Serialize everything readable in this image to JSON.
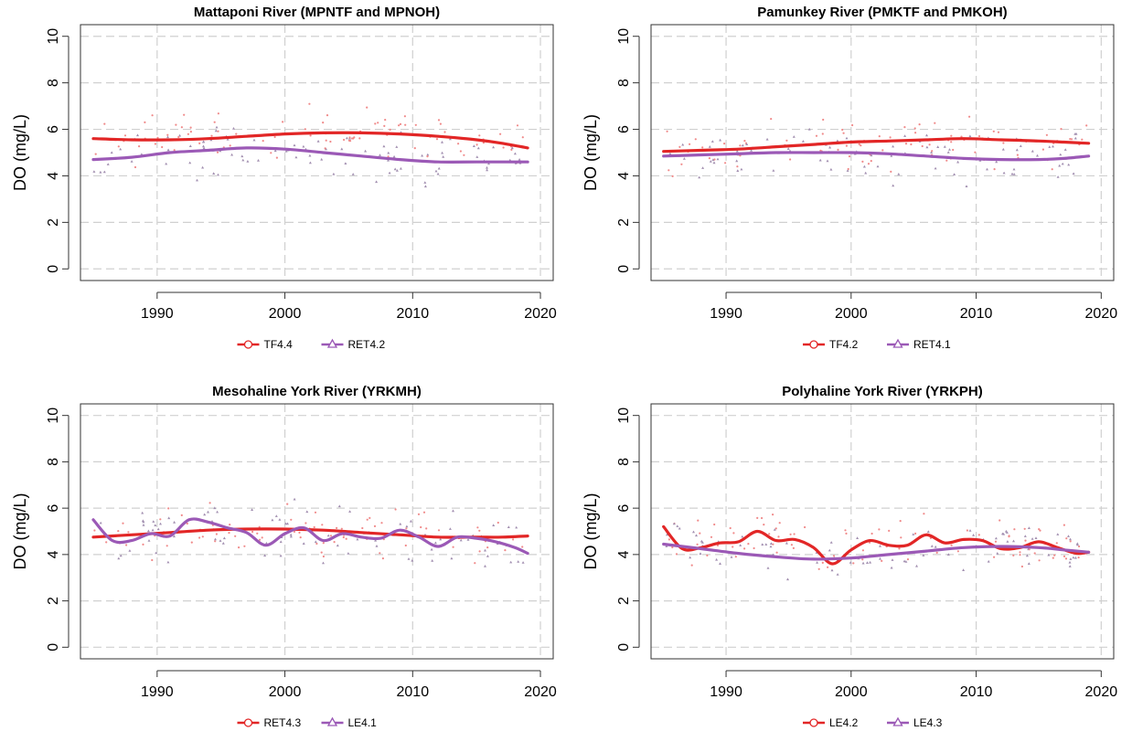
{
  "chart_data": [
    {
      "type": "line",
      "title": "Mattaponi River (MPNTF and MPNOH)",
      "xlabel": "",
      "ylabel": "DO (mg/L)",
      "xlim": [
        1984,
        2021
      ],
      "ylim": [
        -0.5,
        10.5
      ],
      "xticks": [
        1990,
        2000,
        2010,
        2020
      ],
      "yticks": [
        0,
        2,
        4,
        6,
        8,
        10
      ],
      "grid": true,
      "legend_position": "bottom",
      "series": [
        {
          "name": "TF4.4",
          "color": "#e22626",
          "marker": "circle",
          "x": [
            1985,
            1988,
            1991,
            1994,
            1997,
            2000,
            2003,
            2006,
            2009,
            2012,
            2015,
            2017,
            2019
          ],
          "y": [
            5.6,
            5.55,
            5.55,
            5.6,
            5.7,
            5.8,
            5.85,
            5.85,
            5.8,
            5.7,
            5.55,
            5.4,
            5.2
          ]
        },
        {
          "name": "RET4.2",
          "color": "#9b59b6",
          "marker": "triangle",
          "x": [
            1985,
            1988,
            1991,
            1994,
            1997,
            2000,
            2003,
            2006,
            2009,
            2012,
            2015,
            2017,
            2019
          ],
          "y": [
            4.7,
            4.8,
            5.0,
            5.1,
            5.2,
            5.15,
            5.0,
            4.85,
            4.7,
            4.6,
            4.6,
            4.6,
            4.6
          ]
        }
      ]
    },
    {
      "type": "line",
      "title": "Pamunkey River (PMKTF and PMKOH)",
      "xlabel": "",
      "ylabel": "DO (mg/L)",
      "xlim": [
        1984,
        2021
      ],
      "ylim": [
        -0.5,
        10.5
      ],
      "xticks": [
        1990,
        2000,
        2010,
        2020
      ],
      "yticks": [
        0,
        2,
        4,
        6,
        8,
        10
      ],
      "grid": true,
      "legend_position": "bottom",
      "series": [
        {
          "name": "TF4.2",
          "color": "#e22626",
          "marker": "circle",
          "x": [
            1985,
            1988,
            1991,
            1994,
            1997,
            2000,
            2003,
            2006,
            2009,
            2012,
            2015,
            2017,
            2019
          ],
          "y": [
            5.05,
            5.1,
            5.15,
            5.25,
            5.35,
            5.45,
            5.5,
            5.55,
            5.6,
            5.55,
            5.5,
            5.45,
            5.4
          ]
        },
        {
          "name": "RET4.1",
          "color": "#9b59b6",
          "marker": "triangle",
          "x": [
            1985,
            1988,
            1991,
            1994,
            1997,
            2000,
            2003,
            2006,
            2009,
            2012,
            2015,
            2017,
            2019
          ],
          "y": [
            4.85,
            4.9,
            4.95,
            5.0,
            5.0,
            5.0,
            4.95,
            4.85,
            4.75,
            4.7,
            4.7,
            4.75,
            4.85
          ]
        }
      ]
    },
    {
      "type": "line",
      "title": "Mesohaline York River (YRKMH)",
      "xlabel": "",
      "ylabel": "DO (mg/L)",
      "xlim": [
        1984,
        2021
      ],
      "ylim": [
        -0.5,
        10.5
      ],
      "xticks": [
        1990,
        2000,
        2010,
        2020
      ],
      "yticks": [
        0,
        2,
        4,
        6,
        8,
        10
      ],
      "grid": true,
      "legend_position": "bottom",
      "series": [
        {
          "name": "RET4.3",
          "color": "#e22626",
          "marker": "circle",
          "x": [
            1985,
            1988,
            1991,
            1994,
            1997,
            2000,
            2003,
            2006,
            2009,
            2012,
            2015,
            2017,
            2019
          ],
          "y": [
            4.75,
            4.85,
            4.95,
            5.05,
            5.1,
            5.1,
            5.05,
            4.95,
            4.85,
            4.75,
            4.75,
            4.75,
            4.8
          ]
        },
        {
          "name": "LE4.1",
          "color": "#9b59b6",
          "marker": "triangle",
          "x": [
            1985,
            1986.5,
            1988,
            1989.5,
            1991,
            1992.5,
            1994,
            1995.5,
            1997,
            1998.5,
            2000,
            2001.5,
            2003,
            2004.5,
            2006,
            2007.5,
            2009,
            2010.5,
            2012,
            2013.5,
            2015,
            2016.5,
            2018,
            2019
          ],
          "y": [
            5.5,
            4.6,
            4.6,
            4.9,
            4.8,
            5.5,
            5.4,
            5.15,
            4.95,
            4.4,
            4.9,
            5.15,
            4.6,
            4.9,
            4.75,
            4.7,
            5.05,
            4.75,
            4.35,
            4.75,
            4.7,
            4.55,
            4.3,
            4.05
          ]
        }
      ]
    },
    {
      "type": "line",
      "title": "Polyhaline York River (YRKPH)",
      "xlabel": "",
      "ylabel": "DO (mg/L)",
      "xlim": [
        1984,
        2021
      ],
      "ylim": [
        -0.5,
        10.5
      ],
      "xticks": [
        1990,
        2000,
        2010,
        2020
      ],
      "yticks": [
        0,
        2,
        4,
        6,
        8,
        10
      ],
      "grid": true,
      "legend_position": "bottom",
      "series": [
        {
          "name": "LE4.2",
          "color": "#e22626",
          "marker": "circle",
          "x": [
            1985,
            1986.5,
            1988,
            1989.5,
            1991,
            1992.5,
            1994,
            1995.5,
            1997,
            1998.5,
            2000,
            2001.5,
            2003,
            2004.5,
            2006,
            2007.5,
            2009,
            2010.5,
            2012,
            2013.5,
            2015,
            2016.5,
            2018,
            2019
          ],
          "y": [
            5.2,
            4.25,
            4.3,
            4.5,
            4.55,
            5.0,
            4.6,
            4.65,
            4.3,
            3.6,
            4.2,
            4.6,
            4.4,
            4.4,
            4.85,
            4.5,
            4.65,
            4.6,
            4.25,
            4.3,
            4.55,
            4.3,
            4.05,
            4.1
          ]
        },
        {
          "name": "LE4.3",
          "color": "#9b59b6",
          "marker": "triangle",
          "x": [
            1985,
            1988,
            1991,
            1994,
            1997,
            2000,
            2003,
            2006,
            2009,
            2012,
            2015,
            2017,
            2019
          ],
          "y": [
            4.45,
            4.25,
            4.05,
            3.9,
            3.8,
            3.85,
            4.0,
            4.15,
            4.3,
            4.35,
            4.3,
            4.2,
            4.1
          ]
        }
      ]
    }
  ]
}
